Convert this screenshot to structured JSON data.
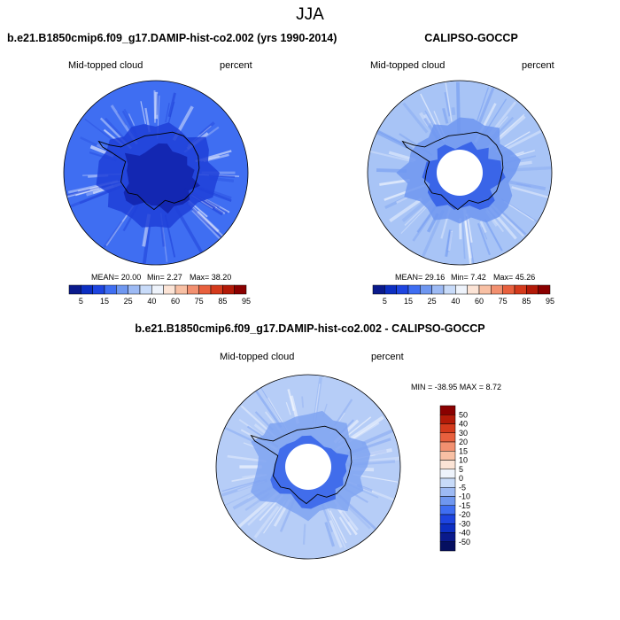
{
  "page": {
    "title": "JJA"
  },
  "panels": [
    {
      "id": "model",
      "title": "b.e21.B1850cmip6.f09_g17.DAMIP-hist-co2.002 (yrs 1990-2014)",
      "left_label": "Mid-topped cloud",
      "right_label": "percent",
      "stats": {
        "mean_text": "MEAN=  20.00",
        "min_text": "Min=   2.27",
        "max_text": "Max=  38.20"
      },
      "colorbar_labels": [
        "5",
        "15",
        "25",
        "40",
        "60",
        "75",
        "85",
        "95"
      ],
      "colors": {
        "outer": "#3f6ef2",
        "inner": "#1e3fd8",
        "core": "#0f1fa8"
      }
    },
    {
      "id": "obs",
      "title": "CALIPSO-GOCCP",
      "left_label": "Mid-topped cloud",
      "right_label": "percent",
      "stats": {
        "mean_text": "MEAN=  29.16",
        "min_text": "Min=   7.42",
        "max_text": "Max=  45.26"
      },
      "colorbar_labels": [
        "5",
        "15",
        "25",
        "40",
        "60",
        "75",
        "85",
        "95"
      ],
      "colors": {
        "outer": "#a8c4f6",
        "inner": "#6f97f0",
        "core": "#2a58e6"
      }
    },
    {
      "id": "diff",
      "title": "b.e21.B1850cmip6.f09_g17.DAMIP-hist-co2.002 - CALIPSO-GOCCP",
      "left_label": "Mid-topped cloud",
      "right_label": "percent",
      "stats_text": "MIN = -38.95 MAX =   8.72",
      "colorbar_labels": [
        "50",
        "40",
        "30",
        "20",
        "15",
        "10",
        "5",
        "0",
        "-5",
        "-10",
        "-15",
        "-20",
        "-30",
        "-40",
        "-50"
      ],
      "colors": {
        "outer": "#b6cdf7",
        "inner": "#7fa3f1",
        "core": "#2f5ee8"
      }
    }
  ],
  "chart_data": {
    "type": "heatmap",
    "seq_colors": [
      "#0a1a8c",
      "#0d2fc2",
      "#1e45e0",
      "#3f6ef2",
      "#6f97f0",
      "#9dbaf4",
      "#c8dbf9",
      "#eef3fb",
      "#fce4d6",
      "#f8c0a4",
      "#f29070",
      "#e8603e",
      "#d43a1c",
      "#b31a08",
      "#8a0000"
    ],
    "diff_colors": [
      "#8a0000",
      "#b31a08",
      "#d43a1c",
      "#e8603e",
      "#f29070",
      "#f8c0a4",
      "#fce4d6",
      "#eef3fb",
      "#c8dbf9",
      "#9dbaf4",
      "#6f97f0",
      "#3f6ef2",
      "#1e45e0",
      "#0d2fc2",
      "#0a1a8c",
      "#050f60"
    ]
  }
}
